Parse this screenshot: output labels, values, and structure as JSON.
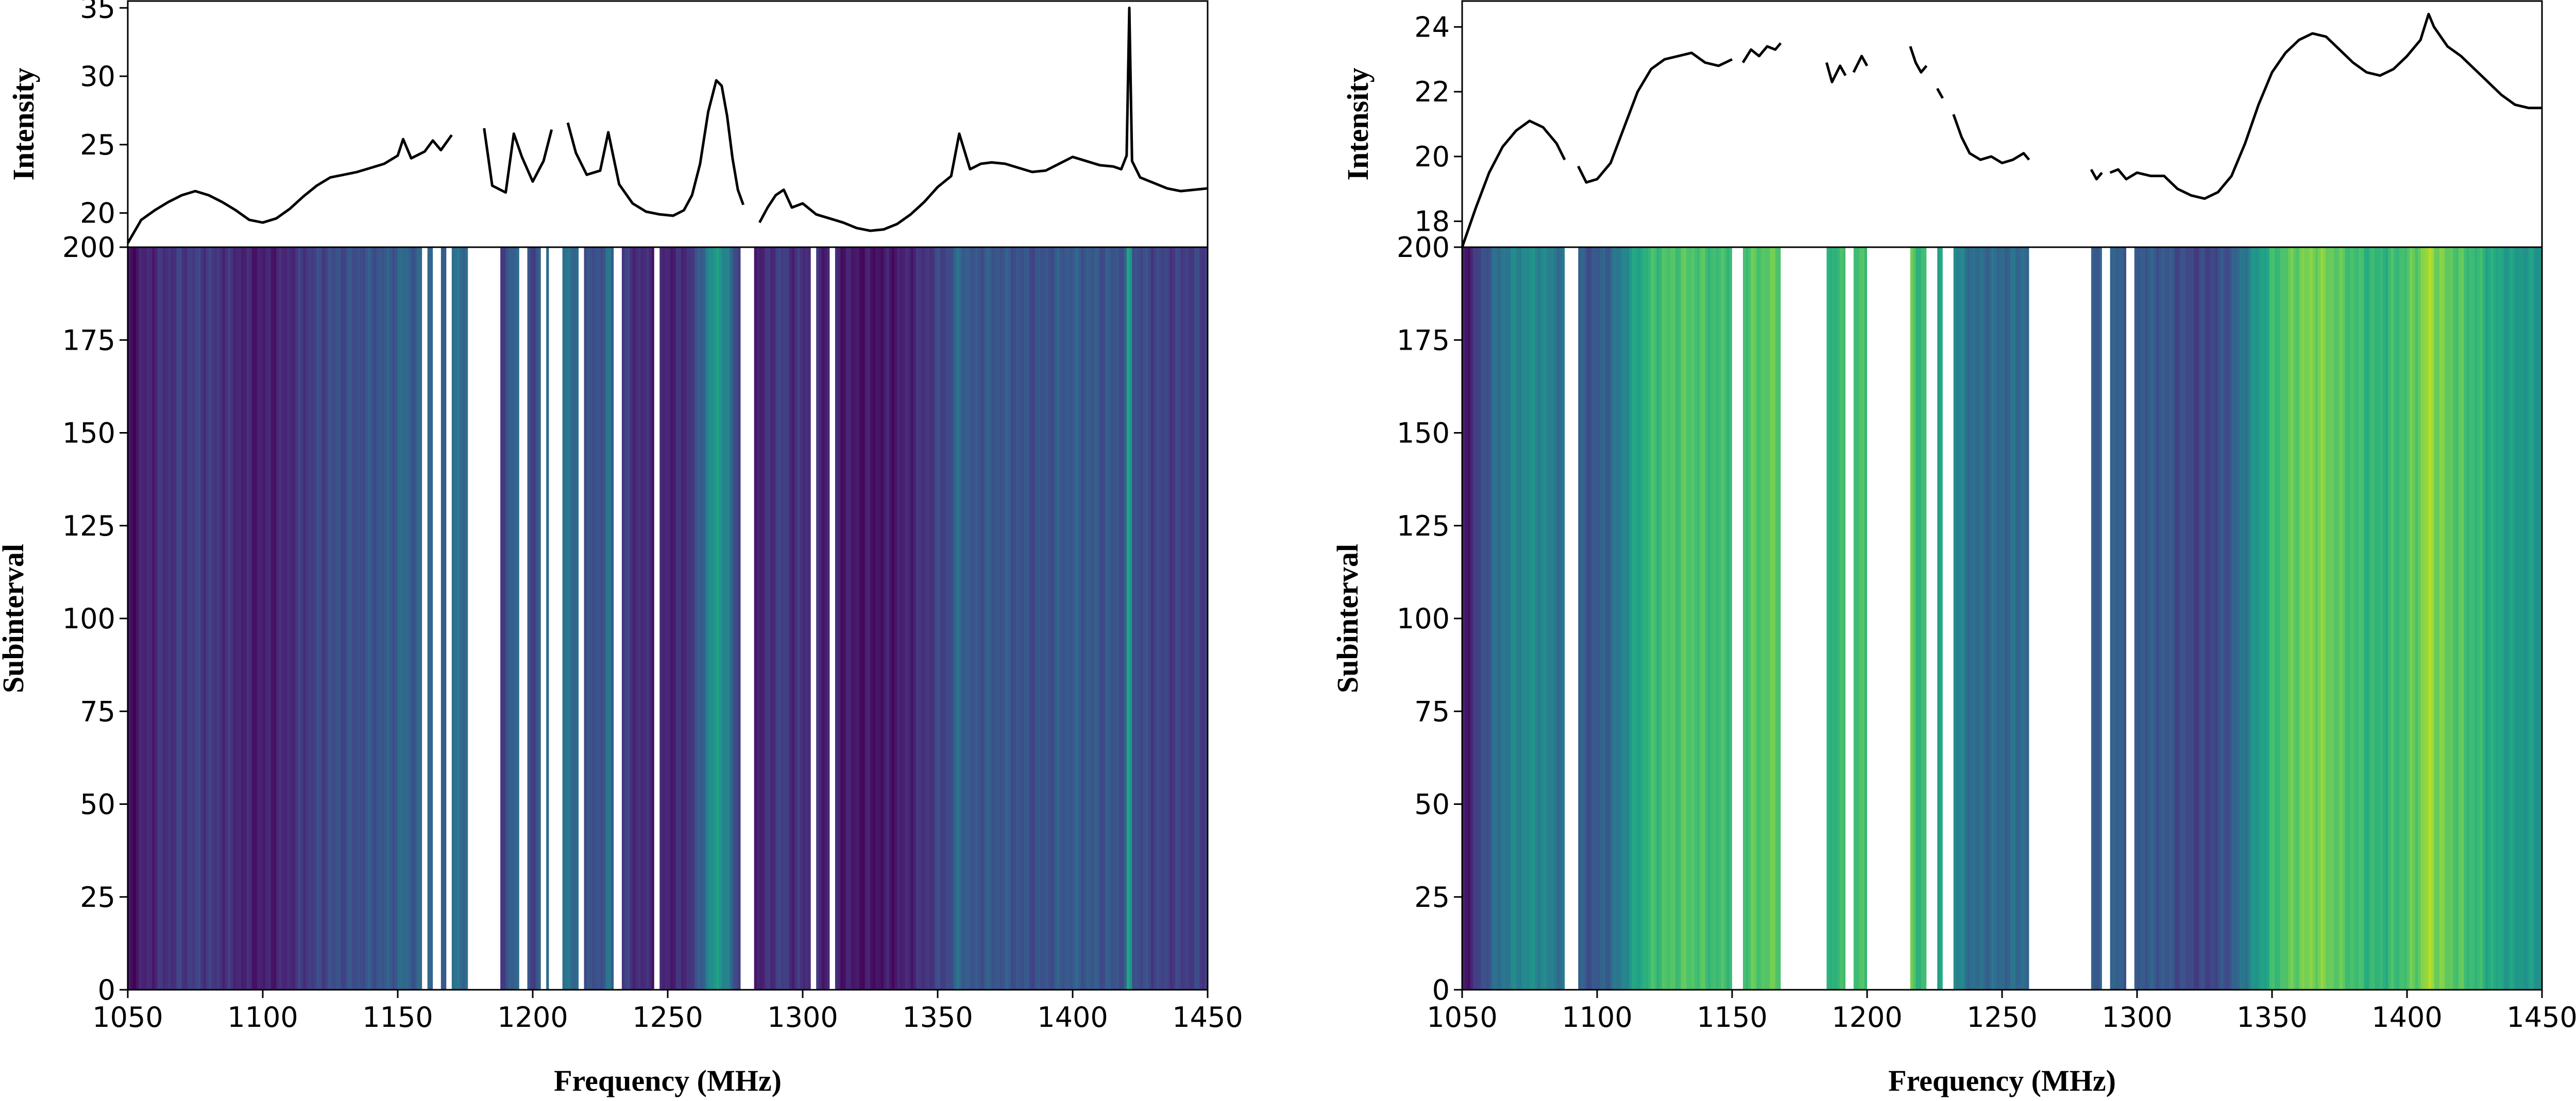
{
  "chart_data": [
    {
      "type": "line",
      "panel": "left-top",
      "xlim": [
        1050,
        1450
      ],
      "ylim": [
        17.5,
        35.5
      ],
      "yticks": [
        "20",
        "25",
        "30",
        "35"
      ],
      "ylabel": "Intensity",
      "segments": [
        [
          [
            1050,
            17.8
          ],
          [
            1055,
            19.5
          ],
          [
            1060,
            20.2
          ],
          [
            1065,
            20.8
          ],
          [
            1070,
            21.3
          ],
          [
            1075,
            21.6
          ],
          [
            1080,
            21.3
          ],
          [
            1085,
            20.8
          ],
          [
            1090,
            20.2
          ],
          [
            1095,
            19.5
          ],
          [
            1100,
            19.3
          ],
          [
            1105,
            19.6
          ],
          [
            1110,
            20.3
          ],
          [
            1115,
            21.2
          ],
          [
            1120,
            22.0
          ],
          [
            1125,
            22.6
          ],
          [
            1130,
            22.8
          ],
          [
            1135,
            23.0
          ],
          [
            1140,
            23.3
          ],
          [
            1145,
            23.6
          ],
          [
            1150,
            24.2
          ],
          [
            1152,
            25.4
          ],
          [
            1155,
            24.0
          ],
          [
            1160,
            24.5
          ],
          [
            1163,
            25.3
          ],
          [
            1166,
            24.6
          ],
          [
            1170,
            25.7
          ]
        ],
        [
          [
            1182,
            26.2
          ],
          [
            1185,
            22.0
          ],
          [
            1190,
            21.5
          ],
          [
            1193,
            25.8
          ],
          [
            1196,
            24.1
          ],
          [
            1200,
            22.3
          ],
          [
            1204,
            23.8
          ],
          [
            1207,
            26.1
          ]
        ],
        [
          [
            1213,
            26.6
          ],
          [
            1216,
            24.4
          ],
          [
            1220,
            22.8
          ],
          [
            1225,
            23.1
          ],
          [
            1228,
            25.9
          ],
          [
            1232,
            22.1
          ],
          [
            1237,
            20.7
          ],
          [
            1242,
            20.1
          ],
          [
            1247,
            19.9
          ],
          [
            1252,
            19.8
          ],
          [
            1256,
            20.2
          ],
          [
            1259,
            21.3
          ],
          [
            1262,
            23.6
          ],
          [
            1265,
            27.4
          ],
          [
            1268,
            29.7
          ],
          [
            1270,
            29.3
          ],
          [
            1272,
            27.1
          ],
          [
            1274,
            24.0
          ],
          [
            1276,
            21.7
          ],
          [
            1278,
            20.6
          ]
        ],
        [
          [
            1284,
            19.3
          ],
          [
            1287,
            20.4
          ],
          [
            1290,
            21.3
          ],
          [
            1293,
            21.7
          ],
          [
            1296,
            20.4
          ],
          [
            1300,
            20.7
          ],
          [
            1305,
            19.9
          ],
          [
            1310,
            19.6
          ],
          [
            1315,
            19.3
          ],
          [
            1320,
            18.9
          ],
          [
            1325,
            18.7
          ],
          [
            1330,
            18.8
          ],
          [
            1335,
            19.2
          ],
          [
            1340,
            19.9
          ],
          [
            1345,
            20.8
          ],
          [
            1350,
            21.9
          ],
          [
            1355,
            22.7
          ],
          [
            1358,
            25.8
          ],
          [
            1362,
            23.2
          ],
          [
            1366,
            23.6
          ],
          [
            1370,
            23.7
          ],
          [
            1375,
            23.6
          ],
          [
            1380,
            23.3
          ],
          [
            1385,
            23.0
          ],
          [
            1390,
            23.1
          ],
          [
            1395,
            23.6
          ],
          [
            1400,
            24.1
          ],
          [
            1405,
            23.8
          ],
          [
            1410,
            23.5
          ],
          [
            1415,
            23.4
          ],
          [
            1418,
            23.2
          ],
          [
            1420,
            24.2
          ],
          [
            1421,
            35.0
          ],
          [
            1422,
            23.8
          ],
          [
            1425,
            22.6
          ],
          [
            1430,
            22.2
          ],
          [
            1435,
            21.8
          ],
          [
            1440,
            21.6
          ],
          [
            1445,
            21.7
          ],
          [
            1450,
            21.8
          ]
        ]
      ]
    },
    {
      "type": "heatmap",
      "panel": "left-bottom",
      "xlim": [
        1050,
        1450
      ],
      "ylim": [
        0,
        200
      ],
      "xticks": [
        "1050",
        "1100",
        "1150",
        "1200",
        "1250",
        "1300",
        "1350",
        "1400",
        "1450"
      ],
      "yticks": [
        "0",
        "25",
        "50",
        "75",
        "100",
        "125",
        "150",
        "175",
        "200"
      ],
      "xlabel": "Frequency (MHz)",
      "ylabel": "Subinterval",
      "colormap": [
        "#440154",
        "#482475",
        "#414487",
        "#355f8d",
        "#2a788e",
        "#21918c",
        "#22a884",
        "#44bf70",
        "#7ad151",
        "#bddf26",
        "#fde725"
      ],
      "masked_bands": [
        [
          1159,
          1161
        ],
        [
          1163,
          1166
        ],
        [
          1168,
          1170
        ],
        [
          1176,
          1188
        ],
        [
          1195,
          1198
        ],
        [
          1203,
          1205
        ],
        [
          1206,
          1211
        ],
        [
          1217,
          1219
        ],
        [
          1230,
          1233
        ],
        [
          1245,
          1247
        ],
        [
          1277,
          1282
        ],
        [
          1303,
          1305
        ],
        [
          1310,
          1312
        ]
      ]
    },
    {
      "type": "line",
      "panel": "right-top",
      "xlim": [
        1050,
        1450
      ],
      "ylim": [
        17.2,
        24.8
      ],
      "yticks": [
        "18",
        "20",
        "22",
        "24"
      ],
      "ylabel": "Intensity",
      "segments": [
        [
          [
            1050,
            17.2
          ],
          [
            1055,
            18.4
          ],
          [
            1060,
            19.5
          ],
          [
            1065,
            20.3
          ],
          [
            1070,
            20.8
          ],
          [
            1075,
            21.1
          ],
          [
            1080,
            20.9
          ],
          [
            1085,
            20.4
          ],
          [
            1088,
            19.9
          ]
        ],
        [
          [
            1093,
            19.7
          ],
          [
            1096,
            19.2
          ],
          [
            1100,
            19.3
          ],
          [
            1105,
            19.8
          ],
          [
            1110,
            20.9
          ],
          [
            1115,
            22.0
          ],
          [
            1120,
            22.7
          ],
          [
            1125,
            23.0
          ],
          [
            1130,
            23.1
          ],
          [
            1135,
            23.2
          ],
          [
            1140,
            22.9
          ],
          [
            1145,
            22.8
          ],
          [
            1150,
            23.0
          ]
        ],
        [
          [
            1154,
            22.9
          ],
          [
            1157,
            23.3
          ],
          [
            1160,
            23.1
          ],
          [
            1163,
            23.4
          ],
          [
            1166,
            23.3
          ],
          [
            1168,
            23.5
          ]
        ],
        [
          [
            1185,
            22.9
          ],
          [
            1187,
            22.3
          ],
          [
            1190,
            22.8
          ],
          [
            1192,
            22.5
          ]
        ],
        [
          [
            1195,
            22.6
          ],
          [
            1198,
            23.1
          ],
          [
            1200,
            22.8
          ]
        ],
        [
          [
            1216,
            23.4
          ],
          [
            1218,
            22.9
          ],
          [
            1220,
            22.6
          ],
          [
            1222,
            22.8
          ]
        ],
        [
          [
            1226,
            22.1
          ],
          [
            1228,
            21.8
          ]
        ],
        [
          [
            1232,
            21.3
          ],
          [
            1235,
            20.6
          ],
          [
            1238,
            20.1
          ],
          [
            1242,
            19.9
          ],
          [
            1246,
            20.0
          ],
          [
            1250,
            19.8
          ],
          [
            1254,
            19.9
          ],
          [
            1258,
            20.1
          ],
          [
            1260,
            19.9
          ]
        ],
        [
          [
            1283,
            19.6
          ],
          [
            1285,
            19.3
          ],
          [
            1287,
            19.5
          ]
        ],
        [
          [
            1290,
            19.5
          ],
          [
            1293,
            19.6
          ],
          [
            1296,
            19.3
          ],
          [
            1300,
            19.5
          ],
          [
            1305,
            19.4
          ],
          [
            1310,
            19.4
          ],
          [
            1315,
            19.0
          ],
          [
            1320,
            18.8
          ],
          [
            1325,
            18.7
          ],
          [
            1330,
            18.9
          ],
          [
            1335,
            19.4
          ],
          [
            1340,
            20.4
          ],
          [
            1345,
            21.6
          ],
          [
            1350,
            22.6
          ],
          [
            1355,
            23.2
          ],
          [
            1360,
            23.6
          ],
          [
            1365,
            23.8
          ],
          [
            1370,
            23.7
          ],
          [
            1375,
            23.3
          ],
          [
            1380,
            22.9
          ],
          [
            1385,
            22.6
          ],
          [
            1390,
            22.5
          ],
          [
            1395,
            22.7
          ],
          [
            1400,
            23.1
          ],
          [
            1405,
            23.6
          ],
          [
            1408,
            24.4
          ],
          [
            1410,
            24.0
          ],
          [
            1415,
            23.4
          ],
          [
            1420,
            23.1
          ],
          [
            1425,
            22.7
          ],
          [
            1430,
            22.3
          ],
          [
            1435,
            21.9
          ],
          [
            1440,
            21.6
          ],
          [
            1445,
            21.5
          ],
          [
            1450,
            21.5
          ]
        ]
      ]
    },
    {
      "type": "heatmap",
      "panel": "right-bottom",
      "xlim": [
        1050,
        1450
      ],
      "ylim": [
        0,
        200
      ],
      "xticks": [
        "1050",
        "1100",
        "1150",
        "1200",
        "1250",
        "1300",
        "1350",
        "1400",
        "1450"
      ],
      "yticks": [
        "0",
        "25",
        "50",
        "75",
        "100",
        "125",
        "150",
        "175",
        "200"
      ],
      "xlabel": "Frequency (MHz)",
      "ylabel": "Subinterval",
      "colormap": [
        "#440154",
        "#482475",
        "#414487",
        "#355f8d",
        "#2a788e",
        "#21918c",
        "#22a884",
        "#44bf70",
        "#7ad151",
        "#bddf26",
        "#fde725"
      ],
      "masked_bands": [
        [
          1088,
          1093
        ],
        [
          1150,
          1154
        ],
        [
          1168,
          1185
        ],
        [
          1192,
          1195
        ],
        [
          1200,
          1216
        ],
        [
          1222,
          1226
        ],
        [
          1228,
          1232
        ],
        [
          1260,
          1283
        ],
        [
          1287,
          1290
        ],
        [
          1296,
          1299
        ]
      ]
    }
  ]
}
